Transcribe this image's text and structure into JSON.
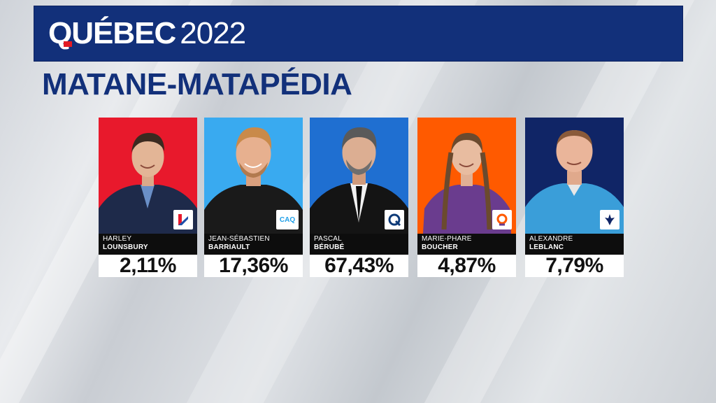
{
  "banner": {
    "title_main": "QUÉBEC",
    "title_year": "2022"
  },
  "riding": "MATANE-MATAPÉDIA",
  "candidates": [
    {
      "first": "HARLEY",
      "last": "LOUNSBURY",
      "pct": "2,11%",
      "color": "#e8192c",
      "logo": "plq-logo-icon",
      "logo_text": ""
    },
    {
      "first": "JEAN-SÉBASTIEN",
      "last": "BARRIAULT",
      "pct": "17,36%",
      "color": "#39aaf0",
      "logo": "caq-logo-icon",
      "logo_text": "CAQ"
    },
    {
      "first": "PASCAL",
      "last": "BÉRUBÉ",
      "pct": "67,43%",
      "color": "#1f6fd1",
      "logo": "pq-logo-icon",
      "logo_text": ""
    },
    {
      "first": "MARIE-PHARE",
      "last": "BOUCHER",
      "pct": "4,87%",
      "color": "#ff5a00",
      "logo": "qs-logo-icon",
      "logo_text": ""
    },
    {
      "first": "ALEXANDRE",
      "last": "LEBLANC",
      "pct": "7,79%",
      "color": "#102566",
      "logo": "pcq-logo-icon",
      "logo_text": ""
    }
  ]
}
